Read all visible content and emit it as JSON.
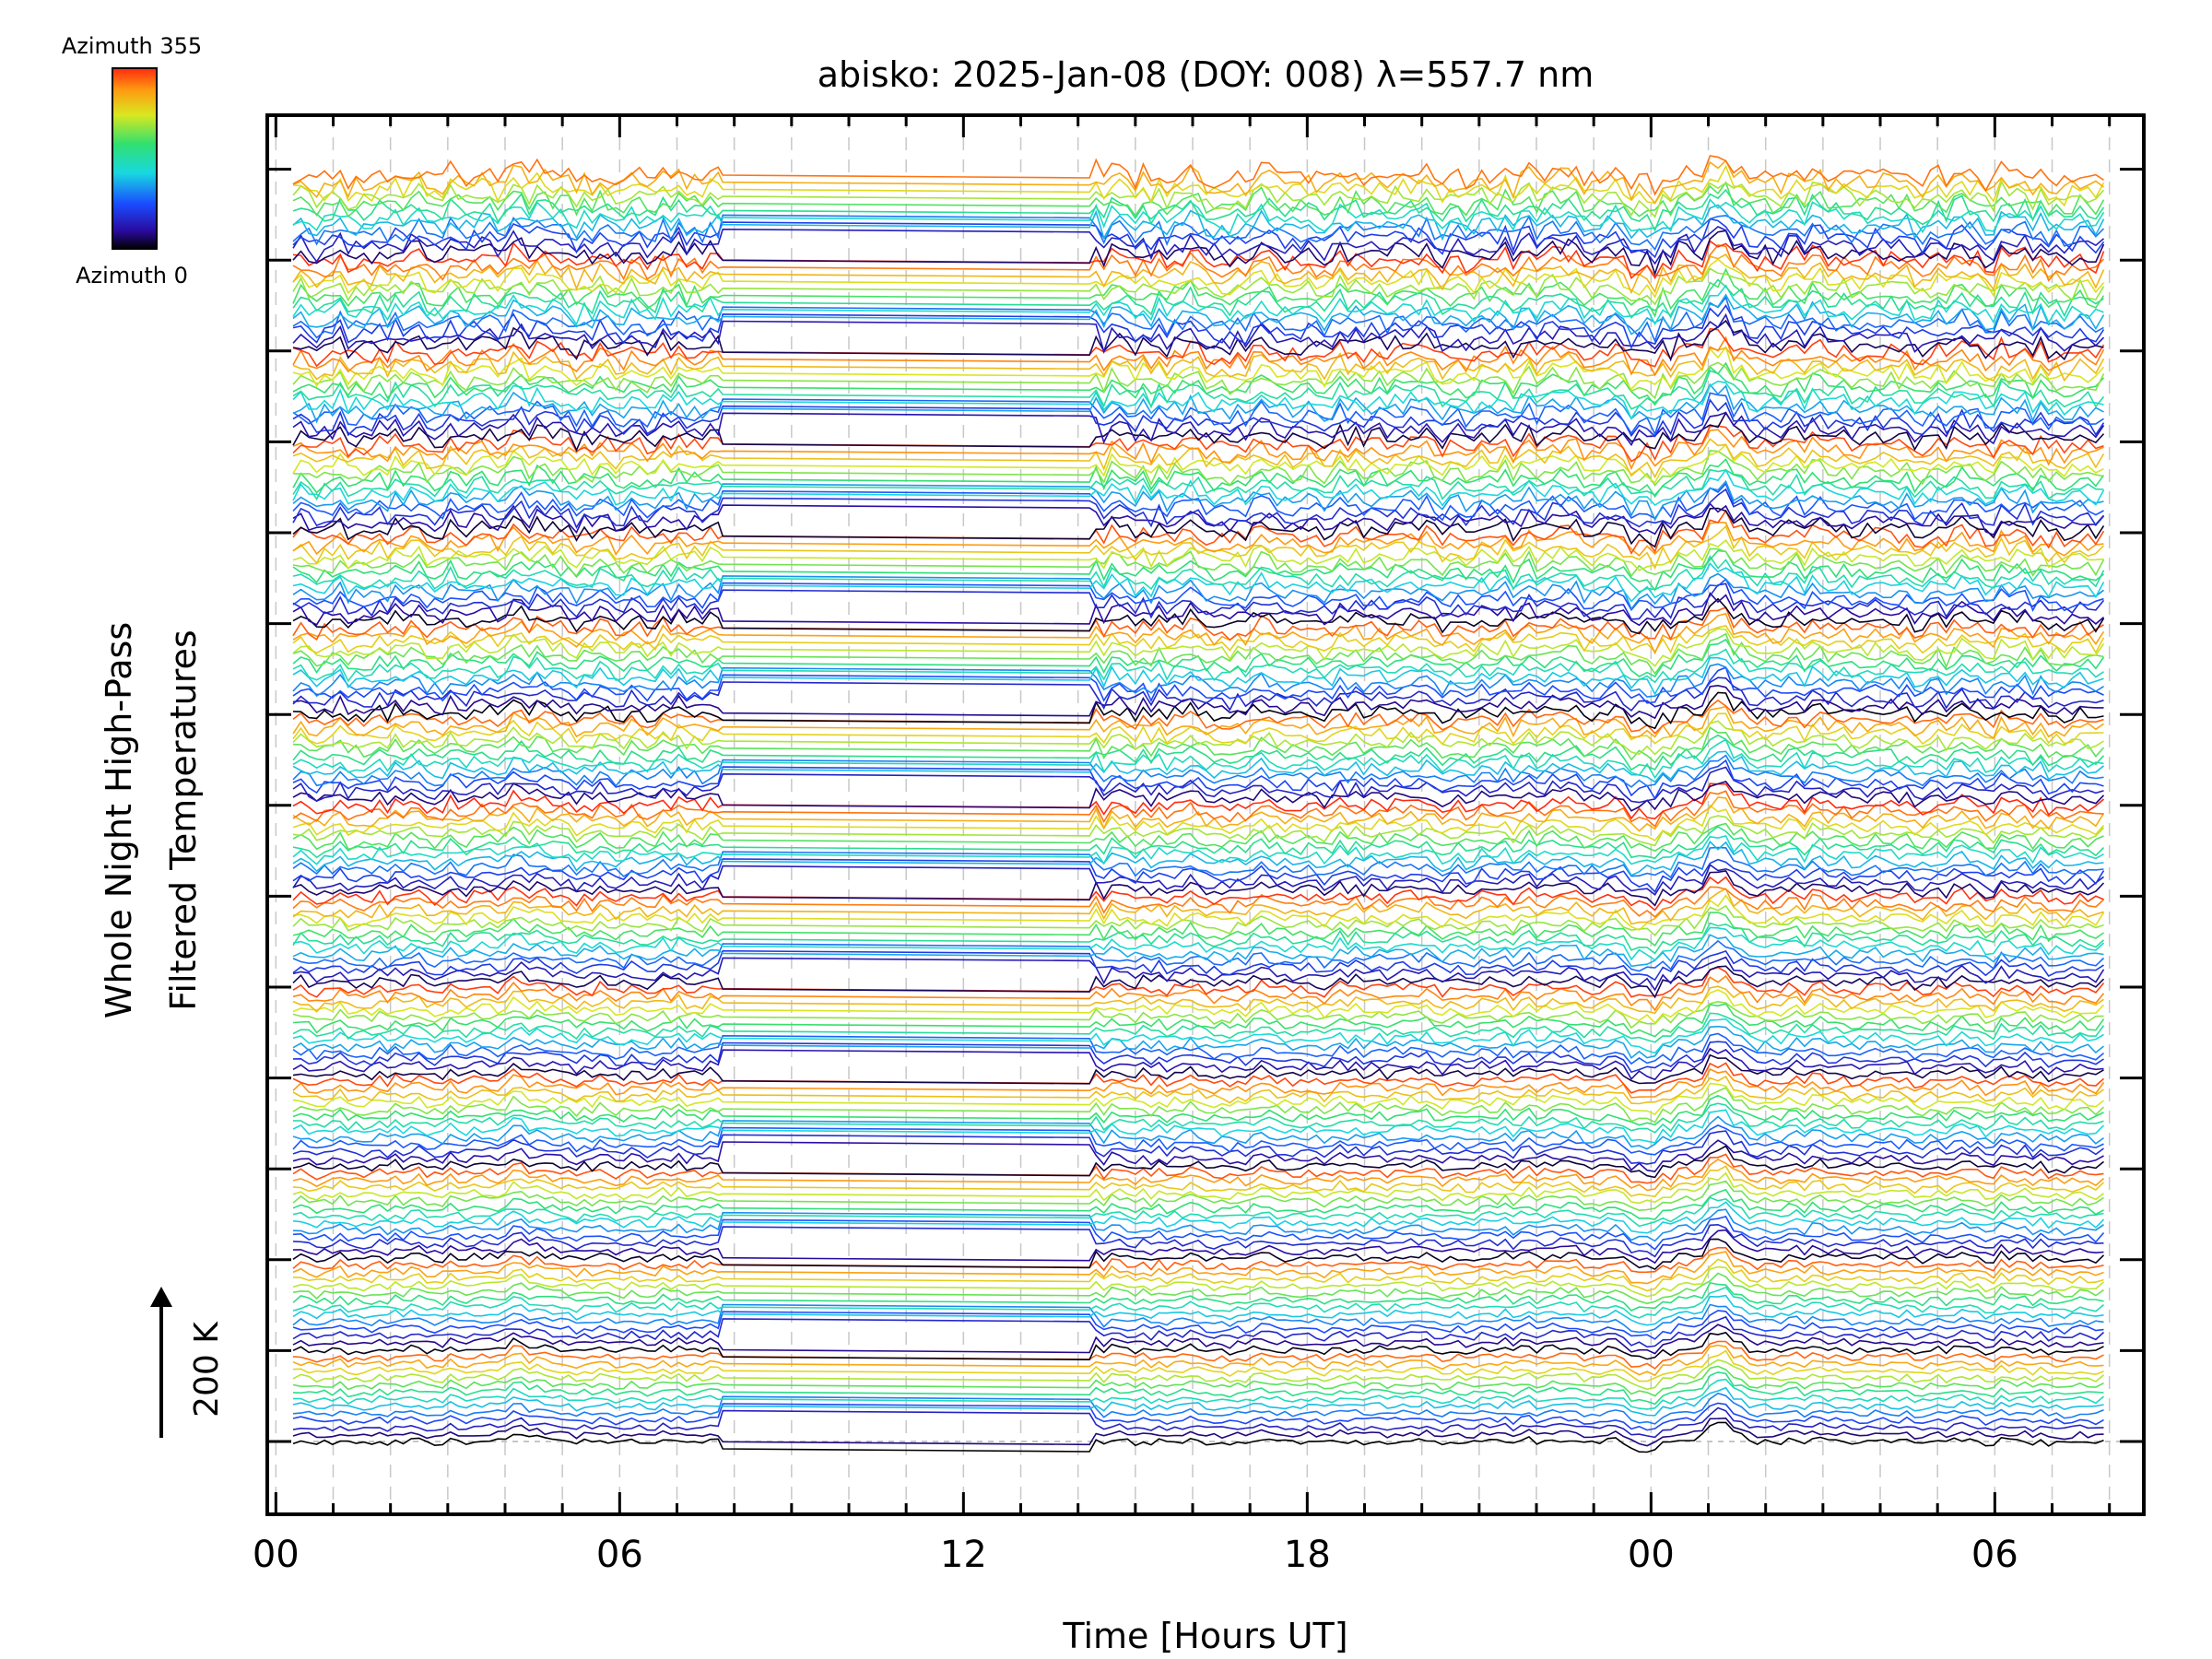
{
  "chart_data": {
    "type": "line",
    "title": "abisko: 2025-Jan-08 (DOY: 008) λ=557.7 nm",
    "xlabel": "Time [Hours UT]",
    "ylabel_line1": "Whole Night High-Pass",
    "ylabel_line2": "Filtered Temperatures",
    "x_tick_labels": [
      "00",
      "06",
      "12",
      "18",
      "00",
      "06"
    ],
    "x_tick_hours": [
      0,
      6,
      12,
      18,
      24,
      30
    ],
    "xlim": [
      -0.15,
      32.6
    ],
    "colorbar": {
      "top_label": "Azimuth 355",
      "bottom_label": "Azimuth 0",
      "min": 0,
      "max": 355
    },
    "scale_indicator": "200 K",
    "series_count": 180,
    "groups": 14,
    "data_gap_hours": [
      7.8,
      14.2
    ],
    "x_range_hours": [
      0.3,
      31.9
    ],
    "colors": {
      "grid": "#c8c8c8",
      "axis": "#000000",
      "baseline": "#b4b4b4"
    }
  }
}
